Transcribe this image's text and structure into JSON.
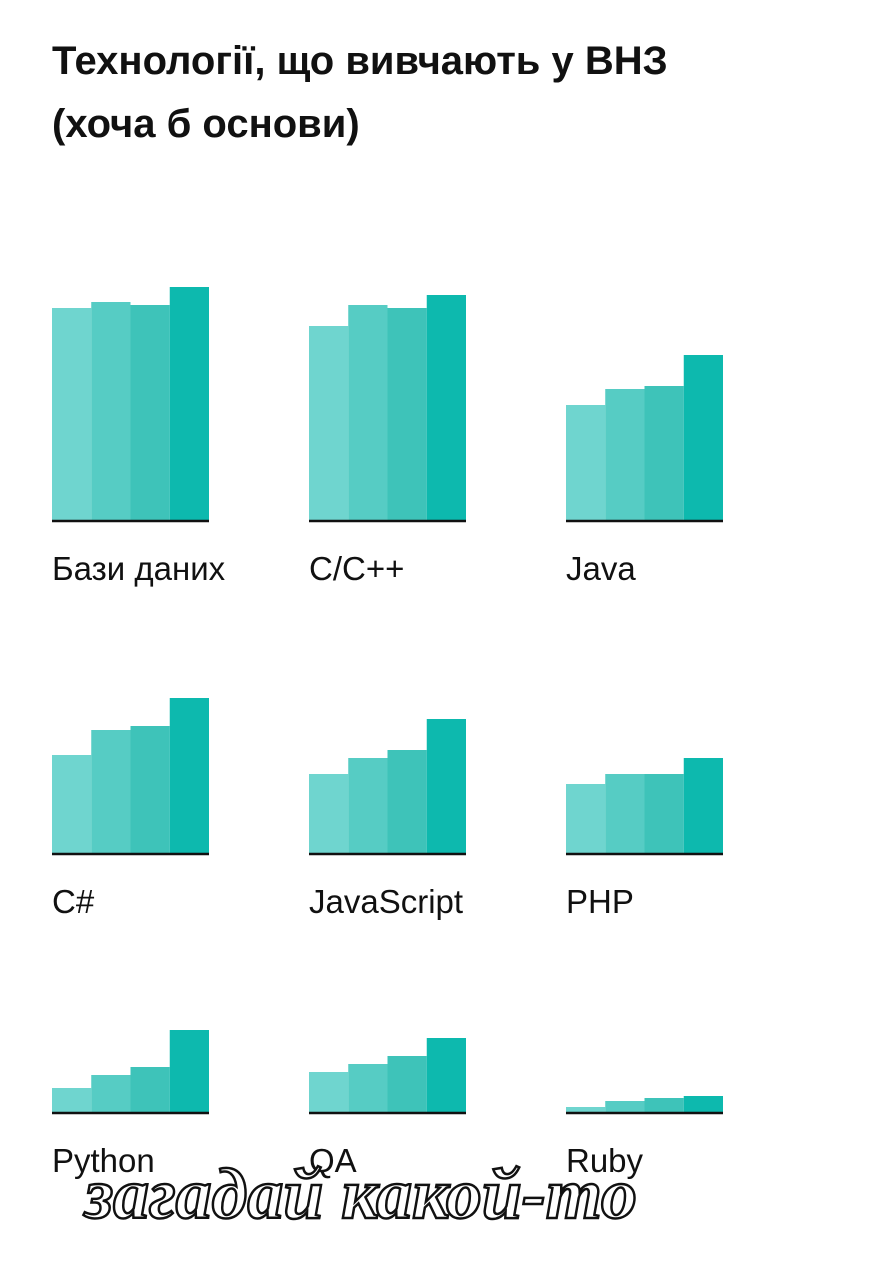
{
  "chart_data": {
    "type": "bar",
    "title": [
      "Технології, що вивчають у ВНЗ",
      "(хоча б основи)"
    ],
    "colors": [
      "#6fd5cf",
      "#56ccc4",
      "#3ec3b9",
      "#0db9ae"
    ],
    "ylim": [
      0,
      250
    ],
    "panels": [
      {
        "label": "Бази даних",
        "values": [
          212,
          218,
          215,
          233
        ]
      },
      {
        "label": "C/C++",
        "values": [
          194,
          215,
          212,
          225
        ]
      },
      {
        "label": "Java",
        "values": [
          115,
          131,
          134,
          165
        ]
      },
      {
        "label": "C#",
        "values": [
          98,
          123,
          127,
          155
        ]
      },
      {
        "label": "JavaScript",
        "values": [
          79,
          95,
          103,
          134
        ]
      },
      {
        "label": "PHP",
        "values": [
          69,
          79,
          79,
          95
        ]
      },
      {
        "label": "Python",
        "values": [
          24,
          37,
          45,
          82
        ]
      },
      {
        "label": "QA",
        "values": [
          40,
          48,
          56,
          74
        ]
      },
      {
        "label": "Ruby",
        "values": [
          5,
          11,
          14,
          16
        ]
      }
    ]
  },
  "watermark": "загадай какой-то"
}
